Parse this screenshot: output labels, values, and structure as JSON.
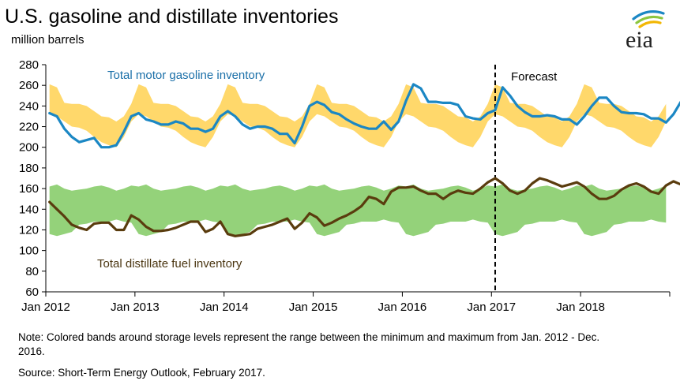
{
  "header": {
    "title": "U.S. gasoline and distillate inventories",
    "subtitle": "million barrels",
    "logo_text": "eia"
  },
  "footer": {
    "note": "Note:  Colored bands around storage levels represent the range between the minimum  and maximum  from Jan. 2012 - Dec. 2016.",
    "source": "Source: Short-Term Energy Outlook, February 2017."
  },
  "colors": {
    "gasoline_line": "#1b87c4",
    "gasoline_band": "#ffd86b",
    "distillate_line": "#5a3c0e",
    "distillate_band": "#94d27a",
    "gasoline_label": "#1a6fa8",
    "distillate_label": "#4a3510",
    "logo_arc_blue": "#1b87c4",
    "logo_arc_green": "#8cc63f",
    "logo_arc_yellow": "#f2b705"
  },
  "chart_data": {
    "type": "line",
    "title": "U.S. gasoline and distillate inventories",
    "ylabel": "million barrels",
    "ylim": [
      60,
      280
    ],
    "yticks": [
      "60",
      "80",
      "100",
      "120",
      "140",
      "160",
      "180",
      "200",
      "220",
      "240",
      "260",
      "280"
    ],
    "xticks": [
      "Jan 2012",
      "Jan 2013",
      "Jan 2014",
      "Jan 2015",
      "Jan 2016",
      "Jan 2017",
      "Jan 2018"
    ],
    "x_start": "Jan 2012",
    "x_end": "Dec 2018",
    "forecast_start": "Jan 2017",
    "forecast_label": "Forecast",
    "annotations": [
      "Total motor gasoline inventory",
      "Total distillate fuel inventory"
    ],
    "series": [
      {
        "name": "Total motor gasoline inventory",
        "values": [
          233,
          230,
          218,
          210,
          205,
          207,
          209,
          200,
          200,
          202,
          215,
          230,
          233,
          227,
          225,
          222,
          222,
          225,
          223,
          218,
          218,
          215,
          218,
          230,
          235,
          230,
          222,
          218,
          220,
          220,
          218,
          213,
          213,
          204,
          220,
          240,
          244,
          241,
          234,
          232,
          227,
          223,
          220,
          218,
          218,
          225,
          217,
          225,
          245,
          261,
          257,
          244,
          244,
          243,
          243,
          241,
          230,
          228,
          227,
          233,
          236,
          258,
          250,
          240,
          234,
          230,
          230,
          231,
          230,
          227,
          227,
          222,
          230,
          240,
          248,
          248,
          240,
          234,
          233,
          233,
          232,
          228,
          228,
          224,
          232,
          244
        ]
      },
      {
        "name": "Total distillate fuel inventory",
        "values": [
          147,
          140,
          133,
          125,
          122,
          120,
          126,
          127,
          127,
          120,
          120,
          134,
          130,
          123,
          119,
          119,
          120,
          122,
          125,
          128,
          128,
          118,
          121,
          128,
          116,
          114,
          115,
          116,
          121,
          123,
          125,
          128,
          131,
          121,
          127,
          136,
          132,
          124,
          127,
          131,
          134,
          138,
          143,
          152,
          150,
          145,
          157,
          161,
          161,
          162,
          158,
          155,
          155,
          150,
          155,
          158,
          156,
          155,
          160,
          166,
          170,
          165,
          158,
          155,
          158,
          165,
          170,
          168,
          165,
          162,
          164,
          166,
          162,
          155,
          150,
          150,
          153,
          159,
          163,
          165,
          162,
          157,
          155,
          163,
          167,
          164
        ]
      }
    ],
    "bands": [
      {
        "name": "gasoline range Jan 2012 - Dec 2016",
        "min": [
          232,
          230,
          225,
          220,
          219,
          216,
          210,
          205,
          202,
          200,
          210,
          225
        ],
        "max": [
          261,
          258,
          243,
          242,
          242,
          240,
          235,
          230,
          229,
          225,
          230,
          242
        ]
      },
      {
        "name": "distillate range Jan 2012 - Dec 2016",
        "min": [
          116,
          114,
          116,
          118,
          125,
          126,
          128,
          128,
          128,
          130,
          128,
          127
        ],
        "max": [
          162,
          164,
          160,
          158,
          159,
          160,
          162,
          163,
          161,
          158,
          160,
          163
        ]
      }
    ]
  }
}
